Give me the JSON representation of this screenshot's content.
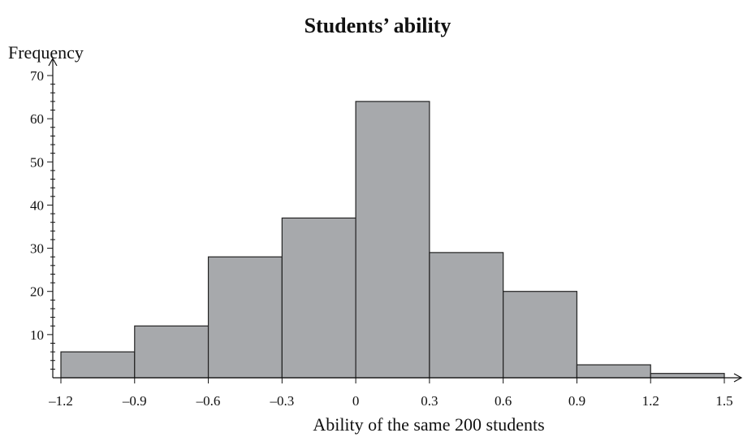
{
  "chart_data": {
    "type": "bar",
    "title": "Students’ ability",
    "xlabel": "Ability of the same 200 students",
    "ylabel": "Frequency",
    "bin_edges": [
      -1.2,
      -0.9,
      -0.6,
      -0.3,
      0,
      0.3,
      0.6,
      0.9,
      1.2,
      1.5
    ],
    "values": [
      6,
      12,
      28,
      37,
      64,
      29,
      20,
      3,
      1
    ],
    "xlim": [
      -1.2,
      1.5
    ],
    "ylim": [
      0,
      70
    ],
    "x_tick_labels": [
      "–1.2",
      "–0.9",
      "–0.6",
      "–0.3",
      "0",
      "0.3",
      "0.6",
      "0.9",
      "1.2",
      "1.5"
    ],
    "y_ticks": [
      10,
      20,
      30,
      40,
      50,
      60,
      70
    ],
    "y_minor_step": 2,
    "grid": false,
    "bar_color": "#a7a9ac",
    "bar_edge_color": "#222222"
  }
}
